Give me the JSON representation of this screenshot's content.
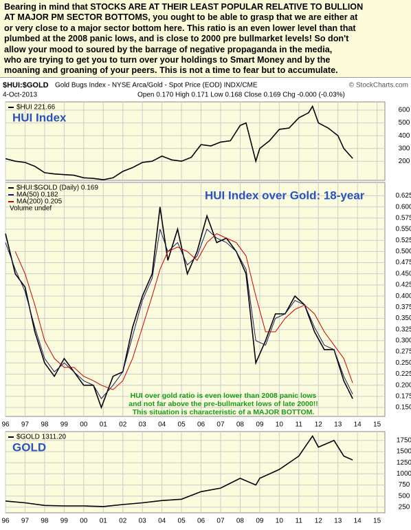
{
  "header": {
    "lines": [
      "Bearing in mind that STOCKS ARE AT THEIR LEAST POPULAR RELATIVE TO BULLION",
      "AT MAJOR PM SECTOR BOTTOMS, you ought to be able to grasp that we are either at",
      "or very close to a major sector bottom here. This ratio is an even lower level than that",
      "plumbed at the 2008 panic lows, and is close to 2000 pre bullmarket levels! So don't",
      "allow your mood to soured by the barrage of negative propaganda in the media,",
      "who are trying to get you to turn over your holdings to Smart Money and by the",
      "moaning and groaning of your peers. This is not a time to fear but to accumulate."
    ],
    "symbol": "$HUI:$GOLD",
    "description": "Gold Bugs Index - NYSE Arca/Gold - Spot Price (EOD) INDX/CME",
    "source": "© StockCharts.com",
    "date": "4-Oct-2013",
    "quote": "Open 0.170  High 0.171  Low 0.168  Close 0.169  Chg -0.000 (-0.03%)"
  },
  "chart_data": [
    {
      "type": "line",
      "title": "HUI Index",
      "x": [
        1996,
        1996.5,
        1997,
        1997.5,
        1998,
        1998.5,
        1999,
        1999.5,
        2000,
        2000.5,
        2001,
        2001.5,
        2002,
        2002.5,
        2003,
        2003.5,
        2004,
        2004.5,
        2005,
        2005.5,
        2006,
        2006.5,
        2007,
        2007.5,
        2008,
        2008.3,
        2008.8,
        2009,
        2009.5,
        2010,
        2010.5,
        2011,
        2011.5,
        2011.7,
        2012,
        2012.5,
        2013,
        2013.3,
        2013.75
      ],
      "series": [
        {
          "name": "$HUI 221.66",
          "color": "#000000",
          "values": [
            220,
            200,
            190,
            160,
            110,
            100,
            95,
            90,
            70,
            65,
            55,
            70,
            120,
            150,
            190,
            200,
            240,
            210,
            200,
            230,
            330,
            320,
            350,
            360,
            480,
            500,
            200,
            300,
            360,
            450,
            460,
            540,
            580,
            630,
            500,
            460,
            400,
            300,
            222
          ]
        }
      ],
      "xlim": [
        1996,
        2015.4
      ],
      "xticks": [
        1996,
        1997,
        1998,
        1999,
        2000,
        2001,
        2002,
        2003,
        2004,
        2005,
        2006,
        2007,
        2008,
        2009,
        2010,
        2011,
        2012,
        2013,
        2014,
        2015
      ],
      "ylim": [
        50,
        665
      ],
      "yticks": [
        200,
        300,
        400,
        500,
        600
      ],
      "grid": true
    },
    {
      "type": "line",
      "title": "HUI Index over Gold: 18-year",
      "x": [
        1996,
        1996.5,
        1997,
        1997.5,
        1998,
        1998.5,
        1999,
        1999.5,
        2000,
        2000.5,
        2000.9,
        2001.5,
        2002,
        2002.5,
        2003,
        2003.5,
        2003.9,
        2004.3,
        2004.8,
        2005.3,
        2005.8,
        2006.3,
        2006.8,
        2007.3,
        2007.8,
        2008.3,
        2008.8,
        2009.3,
        2009.8,
        2010.3,
        2010.8,
        2011.3,
        2011.8,
        2012.3,
        2012.8,
        2013.3,
        2013.75
      ],
      "series": [
        {
          "name": "$HUI:$GOLD (Daily) 0.169",
          "color": "#000000",
          "values": [
            0.54,
            0.45,
            0.42,
            0.32,
            0.25,
            0.22,
            0.26,
            0.23,
            0.2,
            0.2,
            0.15,
            0.22,
            0.23,
            0.33,
            0.4,
            0.45,
            0.6,
            0.48,
            0.55,
            0.45,
            0.5,
            0.58,
            0.52,
            0.53,
            0.5,
            0.45,
            0.25,
            0.3,
            0.36,
            0.36,
            0.4,
            0.38,
            0.32,
            0.28,
            0.28,
            0.21,
            0.17
          ]
        },
        {
          "name": "MA(50) 0.182",
          "color": "#1a1a60",
          "values": [
            0.52,
            0.46,
            0.41,
            0.33,
            0.26,
            0.23,
            0.25,
            0.23,
            0.21,
            0.2,
            0.17,
            0.2,
            0.23,
            0.31,
            0.39,
            0.44,
            0.55,
            0.5,
            0.52,
            0.47,
            0.49,
            0.55,
            0.53,
            0.52,
            0.5,
            0.46,
            0.3,
            0.29,
            0.35,
            0.36,
            0.39,
            0.38,
            0.33,
            0.29,
            0.28,
            0.22,
            0.18
          ]
        },
        {
          "name": "MA(200) 0.205",
          "color": "#cc0000",
          "values": [
            null,
            0.5,
            0.45,
            0.38,
            0.3,
            0.26,
            0.24,
            0.24,
            0.22,
            0.21,
            0.2,
            0.19,
            0.21,
            0.26,
            0.33,
            0.4,
            0.46,
            0.5,
            0.51,
            0.5,
            0.48,
            0.52,
            0.54,
            0.53,
            0.52,
            0.49,
            0.4,
            0.32,
            0.32,
            0.35,
            0.37,
            0.38,
            0.36,
            0.32,
            0.29,
            0.26,
            0.205
          ]
        }
      ],
      "volume_label": "Volume undef",
      "annotation": [
        "HUI over gold ratio is even lower than 2008 panic lows",
        "and not far above the pre-bullmarket lows of late 2000!!",
        "This situation is characteristic of a MAJOR BOTTOM."
      ],
      "xlim": [
        1996,
        2015.4
      ],
      "xticks": [
        {
          "value": 1996,
          "label": "96"
        },
        {
          "value": 1997,
          "label": "97"
        },
        {
          "value": 1998,
          "label": "98"
        },
        {
          "value": 1999,
          "label": "99"
        },
        {
          "value": 2000,
          "label": "00"
        },
        {
          "value": 2001,
          "label": "01"
        },
        {
          "value": 2002,
          "label": "02"
        },
        {
          "value": 2003,
          "label": "03"
        },
        {
          "value": 2004,
          "label": "04"
        },
        {
          "value": 2005,
          "label": "05"
        },
        {
          "value": 2006,
          "label": "06"
        },
        {
          "value": 2007,
          "label": "07"
        },
        {
          "value": 2008,
          "label": "08"
        },
        {
          "value": 2009,
          "label": "09"
        },
        {
          "value": 2010,
          "label": "10"
        },
        {
          "value": 2011,
          "label": "11"
        },
        {
          "value": 2012,
          "label": "12"
        },
        {
          "value": 2013,
          "label": "13"
        },
        {
          "value": 2014,
          "label": "14"
        },
        {
          "value": 2015,
          "label": "15"
        }
      ],
      "ylim": [
        0.13,
        0.655
      ],
      "yticks": [
        {
          "value": 0.15,
          "label": "0.150"
        },
        0.175,
        {
          "value": 0.2,
          "label": "0.200"
        },
        0.225,
        {
          "value": 0.25,
          "label": "0.250"
        },
        0.275,
        {
          "value": 0.3,
          "label": "0.300"
        },
        0.325,
        {
          "value": 0.35,
          "label": "0.350"
        },
        0.375,
        {
          "value": 0.4,
          "label": "0.400"
        },
        0.425,
        {
          "value": 0.45,
          "label": "0.450"
        },
        0.475,
        {
          "value": 0.5,
          "label": "0.500"
        },
        0.525,
        {
          "value": 0.55,
          "label": "0.550"
        },
        0.575,
        {
          "value": 0.6,
          "label": "0.600"
        },
        0.625
      ],
      "grid": true
    },
    {
      "type": "line",
      "title": "GOLD",
      "x": [
        1996,
        1997,
        1998,
        1999,
        2000,
        2001,
        2002,
        2003,
        2004,
        2005,
        2006,
        2007,
        2008,
        2008.8,
        2009,
        2010,
        2011,
        2011.7,
        2012,
        2012.8,
        2013.3,
        2013.75
      ],
      "series": [
        {
          "name": "$GOLD 1311.20",
          "color": "#000000",
          "values": [
            390,
            350,
            290,
            280,
            280,
            265,
            310,
            350,
            400,
            430,
            600,
            680,
            900,
            750,
            900,
            1100,
            1400,
            1850,
            1600,
            1750,
            1400,
            1311
          ]
        }
      ],
      "xlim": [
        1996,
        2015.4
      ],
      "xticks": [
        {
          "value": 1996,
          "label": "96"
        },
        {
          "value": 1997,
          "label": "97"
        },
        {
          "value": 1998,
          "label": "98"
        },
        {
          "value": 1999,
          "label": "99"
        },
        {
          "value": 2000,
          "label": "00"
        },
        {
          "value": 2001,
          "label": "01"
        },
        {
          "value": 2002,
          "label": "02"
        },
        {
          "value": 2003,
          "label": "03"
        },
        {
          "value": 2004,
          "label": "04"
        },
        {
          "value": 2005,
          "label": "05"
        },
        {
          "value": 2006,
          "label": "06"
        },
        {
          "value": 2007,
          "label": "07"
        },
        {
          "value": 2008,
          "label": "08"
        },
        {
          "value": 2009,
          "label": "09"
        },
        {
          "value": 2010,
          "label": "10"
        },
        {
          "value": 2011,
          "label": "11"
        },
        {
          "value": 2012,
          "label": "12"
        },
        {
          "value": 2013,
          "label": "13"
        },
        {
          "value": 2014,
          "label": "14"
        },
        {
          "value": 2015,
          "label": "15"
        }
      ],
      "ylim": [
        125,
        1950
      ],
      "yticks": [
        250,
        500,
        750,
        1000,
        1250,
        1500,
        1750
      ],
      "grid": true
    }
  ]
}
